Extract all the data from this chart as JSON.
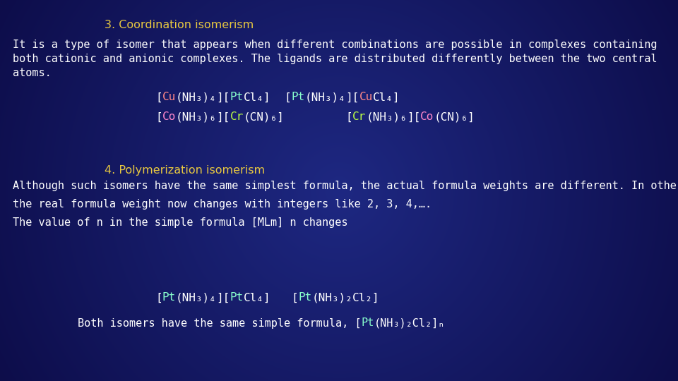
{
  "title1": "3. Coordination isomerism",
  "title1_color": "#e8c840",
  "title2": "4. Polymerization isomerism",
  "title2_color": "#e8c840",
  "white": "#ffffff",
  "bg_dark": "#0d0d4a",
  "Cu_color": "#ff8888",
  "Pt_color": "#88ffcc",
  "Co_color": "#ff88cc",
  "Cr_color": "#bbff44",
  "para1_l1": "It is a type of isomer that appears when different combinations are possible in complexes containing",
  "para1_l2": "both cationic and anionic complexes. The ligands are distributed differently between the two central",
  "para1_l3": "atoms.",
  "para2_l1": "Although such isomers have the same simplest formula, the actual formula weights are different. In other words,",
  "para2_l2": "the real formula weight now changes with integers like 2, 3, 4,….",
  "para2_l3": "The value of n in the simple formula [MLm] n changes",
  "font_title": 11.5,
  "font_body": 11.0,
  "font_formula": 11.5
}
